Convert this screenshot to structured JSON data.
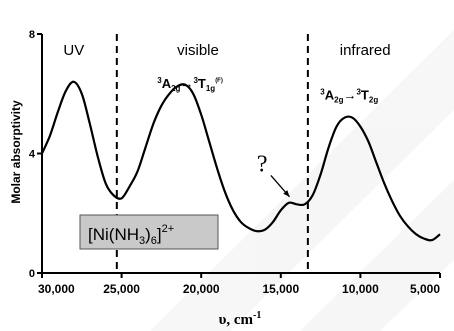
{
  "chart_data": {
    "type": "line",
    "title": "",
    "ylabel": "Molar absorptivity",
    "xlabel": "υ, cm",
    "xlabel_sup": "-1",
    "xlim": [
      30000,
      5000
    ],
    "ylim": [
      0,
      8
    ],
    "x_ticks": [
      30000,
      25000,
      20000,
      15000,
      10000,
      5000
    ],
    "x_tick_labels": [
      "30,000",
      "25,000",
      "20,000",
      "15,000",
      "10,000",
      "5,000"
    ],
    "y_ticks": [
      0,
      4,
      8
    ],
    "y_tick_labels": [
      "0",
      "4",
      "8"
    ],
    "region_dividers": [
      25300,
      13300
    ],
    "regions": [
      {
        "label": "UV",
        "x": 28000,
        "y": 7.3
      },
      {
        "label": "visible",
        "x": 20200,
        "y": 7.3
      },
      {
        "label": "infrared",
        "x": 9700,
        "y": 7.3
      }
    ],
    "transitions": [
      {
        "base": "A",
        "base_sub": "2g",
        "target": "T",
        "target_sub": "1g",
        "target_extra": "(F)",
        "x": 20700,
        "y": 6.2
      },
      {
        "base": "A",
        "base_sub": "2g",
        "target": "T",
        "target_sub": "2g",
        "target_extra": "",
        "x": 10700,
        "y": 5.8
      }
    ],
    "annotation": {
      "text": "?",
      "x": 16000,
      "y": 3.6
    },
    "compound": {
      "prefix": "[Ni(NH",
      "sub1": "3",
      "mid": ")",
      "sub2": "6",
      "suffix": "]",
      "charge": "2+"
    },
    "series": [
      {
        "x": [
          30000,
          29500,
          29000,
          28500,
          28000,
          27500,
          27000,
          26500,
          26000,
          25500,
          25000,
          24500,
          24000,
          23500,
          23000,
          22500,
          22000,
          21500,
          21000,
          20500,
          20000,
          19500,
          19000,
          18500,
          18000,
          17500,
          17000,
          16500,
          16000,
          15500,
          15000,
          14500,
          14000,
          13500,
          13000,
          12500,
          12000,
          11500,
          11000,
          10500,
          10000,
          9500,
          9000,
          8500,
          8000,
          7500,
          7000,
          6500,
          6000,
          5500,
          5000
        ],
        "y": [
          4.0,
          4.6,
          5.4,
          6.1,
          6.4,
          6.0,
          5.0,
          3.9,
          3.0,
          2.6,
          2.5,
          2.9,
          3.4,
          4.2,
          5.0,
          5.6,
          6.0,
          6.25,
          6.3,
          6.0,
          5.3,
          4.4,
          3.5,
          2.7,
          2.1,
          1.7,
          1.5,
          1.4,
          1.45,
          1.7,
          2.1,
          2.35,
          2.3,
          2.3,
          2.6,
          3.3,
          4.2,
          4.9,
          5.2,
          5.2,
          4.9,
          4.4,
          3.7,
          3.0,
          2.4,
          1.9,
          1.55,
          1.3,
          1.15,
          1.1,
          1.3
        ]
      }
    ]
  }
}
